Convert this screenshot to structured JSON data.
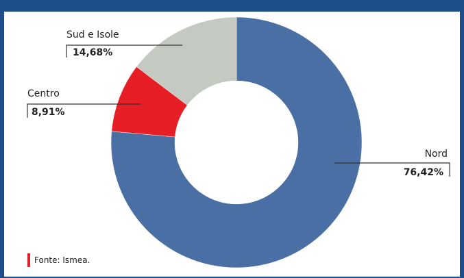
{
  "chart_data": {
    "type": "pie",
    "donut": true,
    "slices": [
      {
        "name": "Nord",
        "label": "76,42%",
        "value": 76.42,
        "color": "#4a6fa5"
      },
      {
        "name": "Centro",
        "label": "8,91%",
        "value": 8.91,
        "color": "#e61e25"
      },
      {
        "name": "Sud e Isole",
        "label": "14,68%",
        "value": 14.68,
        "color": "#c4c9c2"
      }
    ]
  },
  "source": "Fonte: Ismea.",
  "colors": {
    "frame": "#1f4e8c",
    "accent": "#e0222b"
  }
}
